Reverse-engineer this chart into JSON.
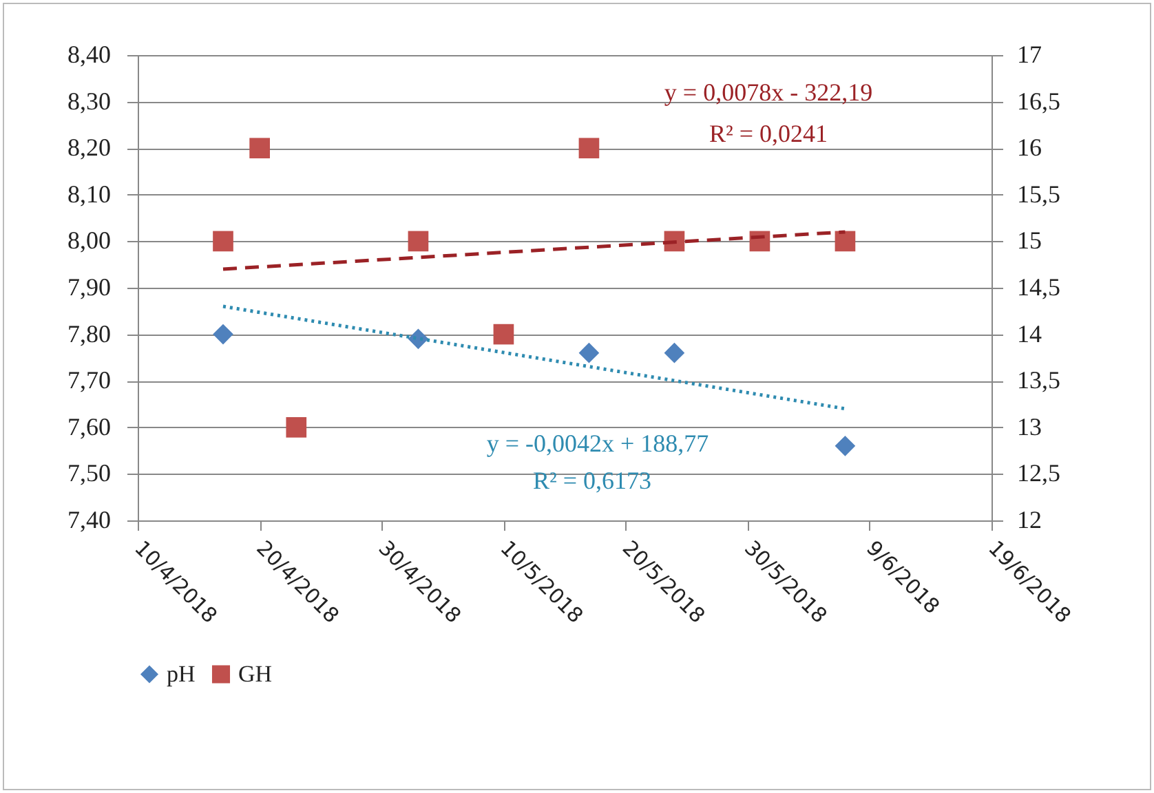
{
  "chart_data": {
    "type": "scatter",
    "xlim": [
      "2018-04-10",
      "2018-06-19"
    ],
    "xticks": [
      {
        "value": "2018-04-10",
        "label": "10/4/2018"
      },
      {
        "value": "2018-04-20",
        "label": "20/4/2018"
      },
      {
        "value": "2018-04-30",
        "label": "30/4/2018"
      },
      {
        "value": "2018-05-10",
        "label": "10/5/2018"
      },
      {
        "value": "2018-05-20",
        "label": "20/5/2018"
      },
      {
        "value": "2018-05-30",
        "label": "30/5/2018"
      },
      {
        "value": "2018-06-09",
        "label": "9/6/2018"
      },
      {
        "value": "2018-06-19",
        "label": "19/6/2018"
      }
    ],
    "ylim": [
      7.4,
      8.4
    ],
    "yticks": [
      {
        "value": 7.4,
        "label": "7,40"
      },
      {
        "value": 7.5,
        "label": "7,50"
      },
      {
        "value": 7.6,
        "label": "7,60"
      },
      {
        "value": 7.7,
        "label": "7,70"
      },
      {
        "value": 7.8,
        "label": "7,80"
      },
      {
        "value": 7.9,
        "label": "7,90"
      },
      {
        "value": 8.0,
        "label": "8,00"
      },
      {
        "value": 8.1,
        "label": "8,10"
      },
      {
        "value": 8.2,
        "label": "8,20"
      },
      {
        "value": 8.3,
        "label": "8,30"
      },
      {
        "value": 8.4,
        "label": "8,40"
      }
    ],
    "y2lim": [
      12,
      17
    ],
    "y2ticks": [
      12,
      {
        "value": 12.5,
        "label": "12,5"
      },
      13,
      {
        "value": 13.5,
        "label": "13,5"
      },
      14,
      {
        "value": 14.5,
        "label": "14,5"
      },
      15,
      {
        "value": 15.5,
        "label": "15,5"
      },
      16,
      {
        "value": 16.5,
        "label": "16,5"
      },
      17
    ],
    "grid": "y",
    "legend": "bottom",
    "series": [
      {
        "name": "pH",
        "type": "scatter",
        "marker": "diamond",
        "color": "#4f81bd",
        "x": [
          "2018-04-17",
          "2018-05-03",
          "2018-05-17",
          "2018-05-24",
          "2018-06-07"
        ],
        "values": [
          7.8,
          7.79,
          7.76,
          7.76,
          7.56
        ]
      },
      {
        "name": "GH",
        "type": "scatter",
        "marker": "square",
        "color": "#c0504d",
        "axis": "y2",
        "x": [
          "2018-04-17",
          "2018-04-20",
          "2018-04-23",
          "2018-05-03",
          "2018-05-10",
          "2018-05-17",
          "2018-05-24",
          "2018-05-31",
          "2018-06-07"
        ],
        "values": [
          15,
          16,
          13,
          15,
          14,
          16,
          15,
          15,
          15
        ]
      },
      {
        "type": "line",
        "color": "#9b2226",
        "axis": "y2",
        "line_style": "dashed",
        "x": [
          "2018-04-17",
          "2018-06-07"
        ],
        "values": [
          14.7,
          15.1
        ]
      },
      {
        "type": "line",
        "color": "#2e8bb0",
        "line_style": "dotted",
        "x": [
          "2018-04-17",
          "2018-06-07"
        ],
        "values": [
          7.86,
          7.64
        ]
      }
    ],
    "annotations": [
      "y = 0,0078x - 322,19",
      "R² = 0,0241",
      "y = -0,0042x + 188,77",
      "R² = 0,6173"
    ]
  }
}
